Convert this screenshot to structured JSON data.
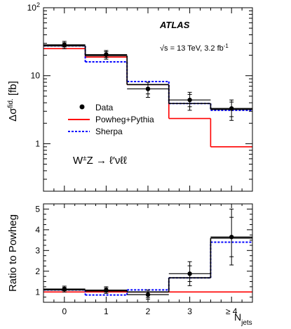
{
  "chart_data": [
    {
      "type": "step",
      "panel": "main",
      "ylabel_main": "Δσ",
      "ylabel_sup": "fid.",
      "ylabel_unit": " [fb]",
      "yscale": "log",
      "ylim": [
        0.2,
        100
      ],
      "xlim": [
        -0.5,
        4.5
      ],
      "x_edges": [
        -0.5,
        0.5,
        1.5,
        2.5,
        3.5,
        4.5
      ],
      "y_major_ticks": [
        {
          "value": 1,
          "base": "1",
          "exp": ""
        },
        {
          "value": 10,
          "base": "10",
          "exp": ""
        },
        {
          "value": 100,
          "base": "10",
          "exp": "2"
        }
      ],
      "experiment": "ATLAS",
      "energy_text_prefix": "√s = 13 TeV, 3.2 fb",
      "energy_text_sup": "-1",
      "process_label": {
        "base": "W",
        "sup": "±",
        "rest": "Z → ℓ′νℓℓ"
      },
      "series": [
        {
          "name": "Data",
          "kind": "points",
          "color": "#000000",
          "values": [
            28.5,
            20.5,
            6.4,
            4.4,
            3.3
          ],
          "err_inner": [
            2.0,
            2.0,
            1.0,
            0.9,
            0.8
          ],
          "err_total": [
            3.5,
            3.0,
            1.6,
            1.3,
            1.1
          ]
        },
        {
          "name": "Powheg+Pythia",
          "kind": "step",
          "color": "#ff0000",
          "values": [
            25.0,
            18.8,
            7.4,
            2.35,
            0.9
          ]
        },
        {
          "name": "Sherpa",
          "kind": "step-dashed",
          "color": "#0000ff",
          "values": [
            27.5,
            16.0,
            8.2,
            3.9,
            3.1
          ]
        },
        {
          "name": "",
          "kind": "step",
          "color": "#000000",
          "values": [
            27.5,
            19.7,
            7.4,
            3.9,
            3.2
          ]
        }
      ]
    },
    {
      "type": "step",
      "panel": "ratio",
      "ylabel": "Ratio to Powheg",
      "xlabel_main": "N",
      "xlabel_sub": "jets",
      "xlim": [
        -0.5,
        4.5
      ],
      "ylim": [
        0.5,
        5.25
      ],
      "x_edges": [
        -0.5,
        0.5,
        1.5,
        2.5,
        3.5,
        4.5
      ],
      "x_tick_labels": [
        "0",
        "1",
        "2",
        "3",
        "≥ 4"
      ],
      "y_tick_labels": [
        "1",
        "2",
        "3",
        "4",
        "5"
      ],
      "reference": 1.0,
      "series": [
        {
          "name": "Data",
          "kind": "points",
          "color": "#000000",
          "values": [
            1.14,
            1.09,
            0.87,
            1.88,
            3.65
          ],
          "err_inner": [
            0.08,
            0.1,
            0.14,
            0.38,
            0.95
          ],
          "err_total": [
            0.14,
            0.16,
            0.22,
            0.58,
            1.35
          ]
        },
        {
          "name": "Sherpa",
          "kind": "step-dashed",
          "color": "#0000ff",
          "values": [
            1.1,
            0.85,
            1.1,
            1.68,
            3.4
          ]
        },
        {
          "name": "",
          "kind": "step",
          "color": "#000000",
          "values": [
            1.1,
            1.05,
            1.0,
            1.68,
            3.6
          ]
        }
      ]
    }
  ]
}
